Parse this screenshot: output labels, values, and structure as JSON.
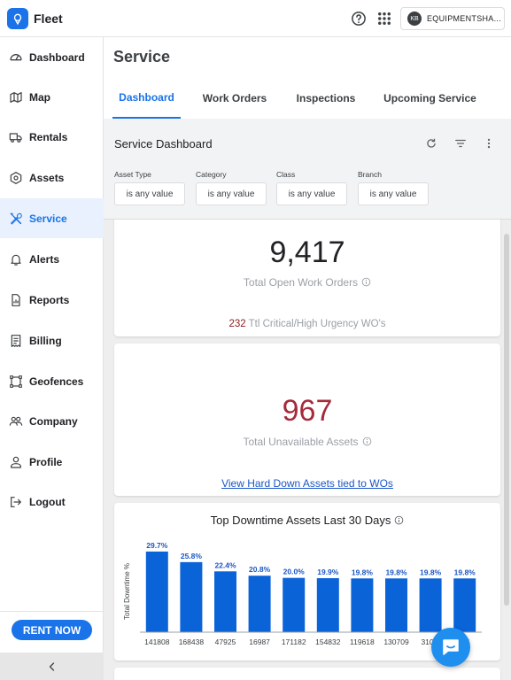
{
  "app": {
    "title": "Fleet",
    "account_initials": "KB",
    "account_name": "EQUIPMENTSHA..."
  },
  "icons": {
    "logo": "location-pin-icon",
    "help": "help-circle-icon",
    "apps": "apps-grid-icon",
    "refresh": "refresh-icon",
    "filter": "filter-icon",
    "more": "more-vert-icon",
    "info": "info-icon",
    "collapse": "chevron-left-icon",
    "chat": "chat-icon"
  },
  "colors": {
    "accent": "#1a73e8",
    "critical": "#8b1a1a",
    "unavailable": "#a52a3a",
    "bar": "#0b63d8"
  },
  "sidebar": {
    "items": [
      {
        "label": "Dashboard",
        "icon": "gauge-icon",
        "active": false
      },
      {
        "label": "Map",
        "icon": "map-icon",
        "active": false
      },
      {
        "label": "Rentals",
        "icon": "truck-icon",
        "active": false
      },
      {
        "label": "Assets",
        "icon": "hexagon-icon",
        "active": false
      },
      {
        "label": "Service",
        "icon": "tools-icon",
        "active": true
      },
      {
        "label": "Alerts",
        "icon": "bell-icon",
        "active": false
      },
      {
        "label": "Reports",
        "icon": "report-icon",
        "active": false
      },
      {
        "label": "Billing",
        "icon": "receipt-icon",
        "active": false
      },
      {
        "label": "Geofences",
        "icon": "geofence-icon",
        "active": false
      },
      {
        "label": "Company",
        "icon": "people-icon",
        "active": false
      },
      {
        "label": "Profile",
        "icon": "person-icon",
        "active": false
      },
      {
        "label": "Logout",
        "icon": "logout-icon",
        "active": false
      }
    ],
    "rent_now": "RENT NOW"
  },
  "page": {
    "title": "Service"
  },
  "tabs": [
    {
      "label": "Dashboard",
      "active": true
    },
    {
      "label": "Work Orders",
      "active": false
    },
    {
      "label": "Inspections",
      "active": false
    },
    {
      "label": "Upcoming Service",
      "active": false
    }
  ],
  "dashboard": {
    "title": "Service Dashboard",
    "filters": [
      {
        "label": "Asset Type",
        "value": "is any value"
      },
      {
        "label": "Category",
        "value": "is any value"
      },
      {
        "label": "Class",
        "value": "is any value"
      },
      {
        "label": "Branch",
        "value": "is any value"
      }
    ]
  },
  "open_wo": {
    "value": "9,417",
    "label": "Total Open Work Orders",
    "critical_count": "232",
    "critical_label": "Ttl Critical/High Urgency WO's"
  },
  "unavailable": {
    "value": "967",
    "label": "Total Unavailable Assets",
    "link": "View Hard Down Assets tied to WOs"
  },
  "chart_data": {
    "type": "bar",
    "title": "Top Downtime Assets Last 30 Days",
    "ylabel": "Total Downtime %",
    "xlabel": "",
    "categories": [
      "141808",
      "168438",
      "47925",
      "16987",
      "171182",
      "154832",
      "119618",
      "130709",
      "310...",
      "...6"
    ],
    "values": [
      29.7,
      25.8,
      22.4,
      20.8,
      20.0,
      19.9,
      19.8,
      19.8,
      19.8,
      19.8
    ],
    "data_labels": [
      "29.7%",
      "25.8%",
      "22.4%",
      "20.8%",
      "20.0%",
      "19.9%",
      "19.8%",
      "19.8%",
      "19.8%",
      "19.8%"
    ],
    "ylim": [
      0,
      30
    ],
    "grid": false,
    "legend": "none"
  }
}
